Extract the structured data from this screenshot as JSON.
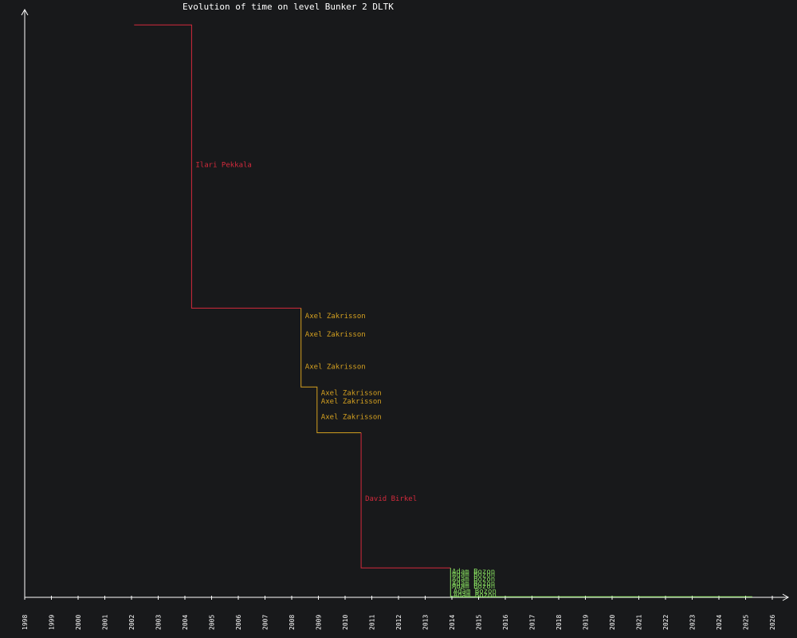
{
  "chart_data": {
    "type": "line",
    "title": "Evolution of time on level Bunker 2 DLTK",
    "xlabel": "",
    "ylabel": "",
    "xlim": [
      1998,
      2026.6
    ],
    "ylim": [
      0,
      100
    ],
    "x_ticks": [
      1998,
      1999,
      2000,
      2001,
      2002,
      2003,
      2004,
      2005,
      2006,
      2007,
      2008,
      2009,
      2010,
      2011,
      2012,
      2013,
      2014,
      2015,
      2016,
      2017,
      2018,
      2019,
      2020,
      2021,
      2022,
      2023,
      2024,
      2025,
      2026
    ],
    "grid": false,
    "colors": {
      "axis": "#ffffff",
      "ilari": "#d42a3c",
      "axel": "#d4a020",
      "david": "#d42a3c",
      "adam": "#88e060"
    },
    "series": [
      {
        "name": "Ilari Pekkala",
        "color": "#d42a3c",
        "points": [
          [
            2002.1,
            97.4
          ],
          [
            2004.25,
            97.4
          ],
          [
            2004.25,
            49.2
          ],
          [
            2008.35,
            49.2
          ]
        ]
      },
      {
        "name": "Axel Zakrisson",
        "color": "#d4a020",
        "points": [
          [
            2008.35,
            49.2
          ],
          [
            2008.35,
            35.8
          ],
          [
            2008.95,
            35.8
          ],
          [
            2008.95,
            28.0
          ],
          [
            2010.6,
            28.0
          ]
        ]
      },
      {
        "name": "David Birkel",
        "color": "#d42a3c",
        "points": [
          [
            2010.6,
            28.0
          ],
          [
            2010.6,
            5.0
          ],
          [
            2013.95,
            5.0
          ]
        ]
      },
      {
        "name": "Adam Bozon",
        "color": "#88e060",
        "points": [
          [
            2013.95,
            5.0
          ],
          [
            2013.95,
            0.1
          ],
          [
            2025.25,
            0.1
          ]
        ]
      }
    ],
    "annotations": [
      {
        "text": "Ilari Pekkala",
        "x": 2004.4,
        "y": 73.6,
        "color": "#d42a3c"
      },
      {
        "text": "Axel Zakrisson",
        "x": 2008.5,
        "y": 47.9,
        "color": "#d4a020"
      },
      {
        "text": "Axel Zakrisson",
        "x": 2008.5,
        "y": 44.8,
        "color": "#d4a020"
      },
      {
        "text": "Axel Zakrisson",
        "x": 2008.5,
        "y": 39.3,
        "color": "#d4a020"
      },
      {
        "text": "Axel Zakrisson",
        "x": 2009.1,
        "y": 34.8,
        "color": "#d4a020"
      },
      {
        "text": "Axel Zakrisson",
        "x": 2009.1,
        "y": 33.4,
        "color": "#d4a020"
      },
      {
        "text": "Axel Zakrisson",
        "x": 2009.1,
        "y": 30.7,
        "color": "#d4a020"
      },
      {
        "text": "David Birkel",
        "x": 2010.75,
        "y": 16.8,
        "color": "#d42a3c"
      },
      {
        "text": "Adam Bozon",
        "x": 2014.0,
        "y": 4.4,
        "color": "#88e060"
      },
      {
        "text": "Adam Bozon",
        "x": 2014.0,
        "y": 3.9,
        "color": "#88e060"
      },
      {
        "text": "Adam Bozon",
        "x": 2014.0,
        "y": 3.1,
        "color": "#88e060"
      },
      {
        "text": "Adam Bozon",
        "x": 2014.0,
        "y": 2.4,
        "color": "#88e060"
      },
      {
        "text": "Adam Bozon",
        "x": 2014.0,
        "y": 1.9,
        "color": "#88e060"
      },
      {
        "text": "Adam Bozon",
        "x": 2014.05,
        "y": 1.1,
        "color": "#88e060"
      },
      {
        "text": "Adam Bozon",
        "x": 2014.05,
        "y": 0.4,
        "color": "#88e060"
      }
    ]
  }
}
